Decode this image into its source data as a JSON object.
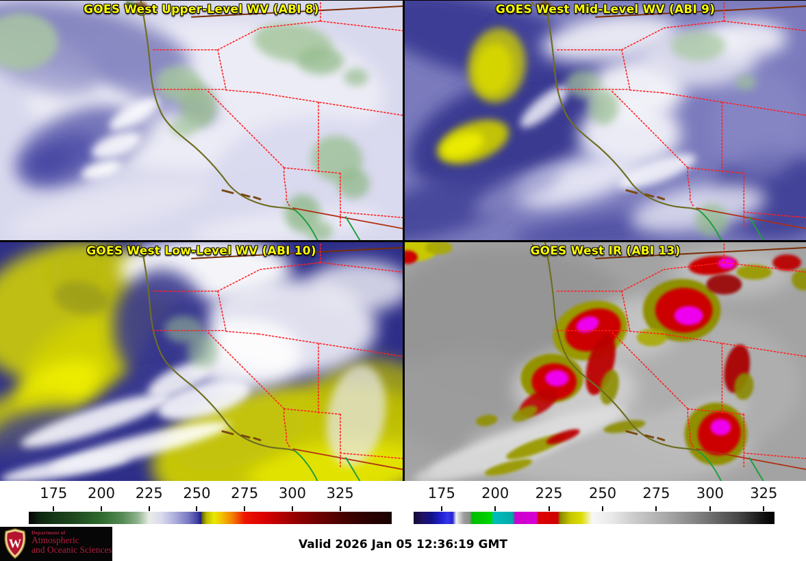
{
  "panels": [
    {
      "title": "GOES West Upper-Level WV (ABI 8)"
    },
    {
      "title": "GOES West Mid-Level WV (ABI 9)"
    },
    {
      "title": "GOES West Low-Level WV (ABI 10)"
    },
    {
      "title": "GOES West IR (ABI 13)"
    }
  ],
  "title_color": "#ffff00",
  "colorbars": {
    "left": {
      "name": "water-vapor-enhancement",
      "ticks": [
        175,
        200,
        225,
        250,
        275,
        300,
        325
      ],
      "domain": [
        162,
        352
      ],
      "gradient": [
        "#050505 0%",
        "#0e2611 3%",
        "#153716 6.8%",
        "#1f4a1f 13%",
        "#2f6b2f 20%",
        "#578b57 26%",
        "#8fb38c 30%",
        "#e9ede7 33.2%",
        "#dadaed 36.5%",
        "#b1b1de 40%",
        "#7878c2 44%",
        "#4040a2 46.5%",
        "#1d1d87 47.4%",
        "#6c6c00 47.8%",
        "#baba00 49%",
        "#e9e900 51%",
        "#f3c500 53%",
        "#f18200 56%",
        "#ee1600 59.5%",
        "#d90000 65%",
        "#9b0000 72.6%",
        "#6c0000 80%",
        "#4b0000 85.8%",
        "#2c0000 93%",
        "#190000 100%"
      ]
    },
    "right": {
      "name": "ir-enhancement",
      "ticks": [
        175,
        200,
        225,
        250,
        275,
        300,
        325
      ],
      "domain": [
        162,
        330
      ],
      "gradient": [
        "#150b30 0%",
        "#1f1164 2.5%",
        "#121288 5%",
        "#2121d2 7.7%",
        "#3636ea 9.5%",
        "#2323cd 10.8%",
        "#f3f3f3 11.8%",
        "#9b9b9b 14%",
        "#8b8b8b 15.6%",
        "#00bb00 16.2%",
        "#00d500 21.4%",
        "#00bdbd 22.2%",
        "#00a9a9 27.4%",
        "#cd00cd 28.2%",
        "#d500d5 33.9%",
        "#de0000 34.7%",
        "#cd0000 39.9%",
        "#8b8b00 40.7%",
        "#c7c700 43.5%",
        "#dddd00 46.5%",
        "#f7f7f7 49.5%",
        "#e9e9e9 55%",
        "#d0d0d0 60%",
        "#a9a9a9 70%",
        "#7b7b7b 80%",
        "#464646 90%",
        "#111111 97%",
        "#000000 100%"
      ]
    }
  },
  "logo": {
    "department": "Department of",
    "line1": "Atmospheric",
    "line2": "and Oceanic Sciences",
    "crest_letter": "W",
    "text_color": "#b01f3d"
  },
  "valid_label": "Valid 2026 Jan 05 12:36:19 GMT",
  "map_colors": {
    "coastline": "#6e6e23",
    "state_borders": "#ff2020",
    "canada_border": "#7a2d05",
    "mexico_border": "#b03015",
    "mexico_coast": "#1f9e3f"
  }
}
